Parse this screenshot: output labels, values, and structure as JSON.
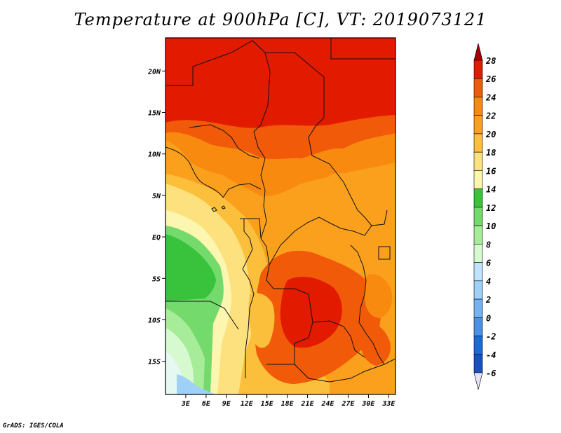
{
  "title": "Temperature at 900hPa [C], VT: 2019073121",
  "credit": "GrADS: IGES/COLA",
  "map": {
    "lon_range": [
      0,
      34
    ],
    "lat_range": [
      -19,
      24
    ],
    "x_ticks": [
      {
        "value": 3,
        "label": "3E"
      },
      {
        "value": 6,
        "label": "6E"
      },
      {
        "value": 9,
        "label": "9E"
      },
      {
        "value": 12,
        "label": "12E"
      },
      {
        "value": 15,
        "label": "15E"
      },
      {
        "value": 18,
        "label": "18E"
      },
      {
        "value": 21,
        "label": "21E"
      },
      {
        "value": 24,
        "label": "24E"
      },
      {
        "value": 27,
        "label": "27E"
      },
      {
        "value": 30,
        "label": "30E"
      },
      {
        "value": 33,
        "label": "33E"
      }
    ],
    "y_ticks": [
      {
        "value": 20,
        "label": "20N"
      },
      {
        "value": 15,
        "label": "15N"
      },
      {
        "value": 10,
        "label": "10N"
      },
      {
        "value": 5,
        "label": "5N"
      },
      {
        "value": 0,
        "label": "EQ"
      },
      {
        "value": -5,
        "label": "5S"
      },
      {
        "value": -10,
        "label": "10S"
      },
      {
        "value": -15,
        "label": "15S"
      }
    ]
  },
  "colorbar": {
    "labels": [
      "28",
      "26",
      "24",
      "22",
      "20",
      "18",
      "16",
      "14",
      "12",
      "10",
      "8",
      "6",
      "4",
      "2",
      "0",
      "-2",
      "-4",
      "-6"
    ],
    "colors": [
      "#a50000",
      "#e21a00",
      "#f05a08",
      "#f98a10",
      "#faa01d",
      "#fbbf3c",
      "#fde17f",
      "#fcf6b0",
      "#39c33c",
      "#74da6b",
      "#a7ec98",
      "#d7f9d0",
      "#bfe4ff",
      "#9fd0f8",
      "#76b2ef",
      "#4a91e3",
      "#2a6ed6",
      "#1a4fbf",
      "#0d2c96",
      "#0a1470",
      "#e4e4f8"
    ],
    "level_colors": [
      "#a50000",
      "#e21a00",
      "#f05a08",
      "#f98a10",
      "#faa01d",
      "#fbbf3c",
      "#fde17f",
      "#fcf6b0",
      "#39c33c",
      "#74da6b",
      "#a7ec98",
      "#d7f9d0",
      "#bfe4ff",
      "#9fd0f8",
      "#76b2ef",
      "#4a91e3",
      "#1f68d8",
      "#1a4fbf",
      "#0a1470"
    ]
  },
  "temperature_bands": {
    "above_28": "#e21a00",
    "26_28": "#f05a08",
    "24_26": "#f98a10",
    "22_24": "#faa01d",
    "20_22": "#fbbf3c",
    "18_20": "#fde17f",
    "16_18": "#fcf6b0",
    "14_16": "#39c33c",
    "12_14": "#74da6b",
    "10_12": "#a7ec98",
    "8_10": "#d7f9d0",
    "6_8": "#9fd0f8"
  }
}
